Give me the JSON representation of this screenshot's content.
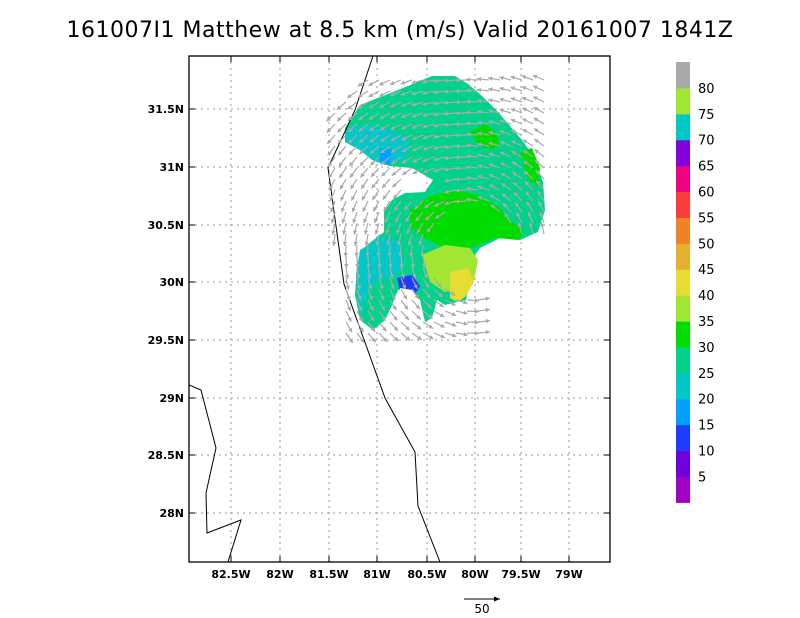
{
  "title": "161007I1 Matthew at 8.5 km (m/s) Valid 20161007 1841Z",
  "map": {
    "lon_labels": [
      "82.5W",
      "82W",
      "81.5W",
      "81W",
      "80.5W",
      "80W",
      "79.5W",
      "79W"
    ],
    "lat_labels": [
      "31.5N",
      "31N",
      "30.5N",
      "30N",
      "29.5N",
      "29N",
      "28.5N",
      "28N"
    ],
    "reference_vector_label": "50",
    "colorbar": {
      "labels": [
        "5",
        "10",
        "15",
        "20",
        "25",
        "30",
        "35",
        "40",
        "45",
        "50",
        "55",
        "60",
        "65",
        "70",
        "75",
        "80"
      ],
      "colors": [
        "#a000c8",
        "#6e00dc",
        "#1e3cff",
        "#00a0ff",
        "#00c8c8",
        "#00d28c",
        "#00dc00",
        "#a0e632",
        "#e6dc32",
        "#e6af2d",
        "#f08228",
        "#fa3c3c",
        "#f00082",
        "#8200dc",
        "#00c8c8",
        "#a0e632",
        "#a9a9a9"
      ]
    },
    "arrow_color": "#a9a9a9"
  }
}
